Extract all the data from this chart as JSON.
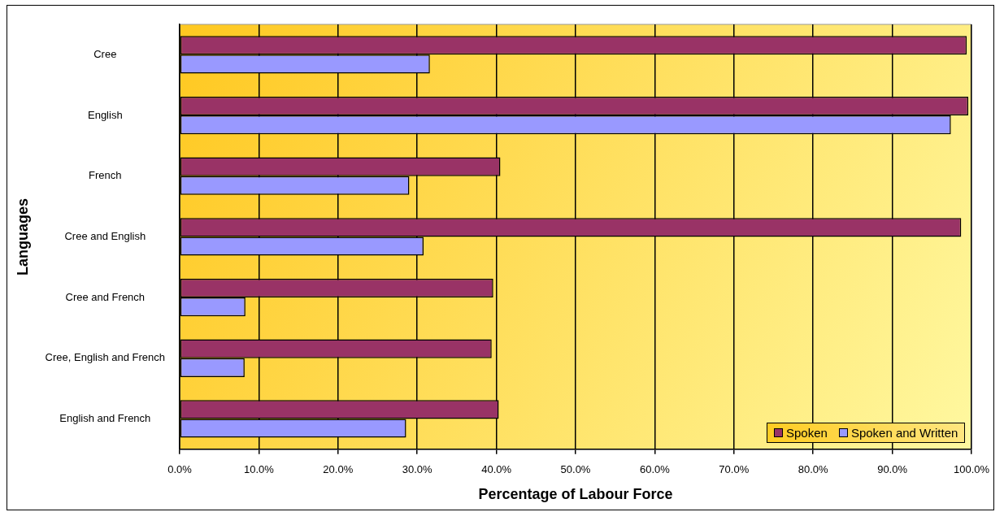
{
  "chart_data": {
    "type": "bar",
    "orientation": "horizontal",
    "xlabel": "Percentage of Labour Force",
    "ylabel": "Languages",
    "categories": [
      "Cree",
      "English",
      "French",
      "Cree and English",
      "Cree and French",
      "Cree, English and French",
      "English and French"
    ],
    "series": [
      {
        "name": "Spoken",
        "color": "#993366",
        "values": [
          99.4,
          99.6,
          40.5,
          98.7,
          39.6,
          39.4,
          40.3
        ]
      },
      {
        "name": "Spoken and Written",
        "color": "#9999ff",
        "values": [
          31.6,
          97.4,
          29.0,
          30.8,
          8.3,
          8.2,
          28.6
        ]
      }
    ],
    "xlim": [
      0,
      100
    ],
    "xticks": [
      {
        "value": 0,
        "label": "0.0%"
      },
      {
        "value": 10,
        "label": "10.0%"
      },
      {
        "value": 20,
        "label": "20.0%"
      },
      {
        "value": 30,
        "label": "30.0%"
      },
      {
        "value": 40,
        "label": "40.0%"
      },
      {
        "value": 50,
        "label": "50.0%"
      },
      {
        "value": 60,
        "label": "60.0%"
      },
      {
        "value": 70,
        "label": "70.0%"
      },
      {
        "value": 80,
        "label": "80.0%"
      },
      {
        "value": 90,
        "label": "90.0%"
      },
      {
        "value": 100,
        "label": "100.0%"
      }
    ],
    "grid": "x",
    "legend": "bottom right"
  }
}
